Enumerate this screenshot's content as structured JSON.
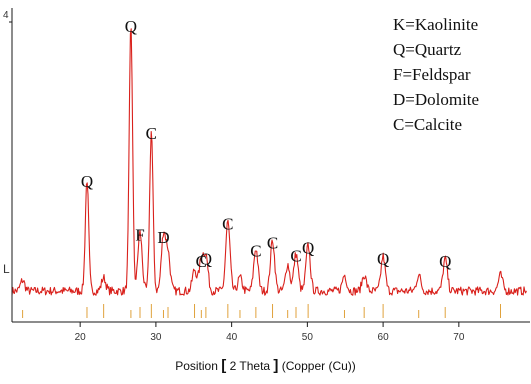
{
  "chart_data": {
    "type": "line",
    "xlabel": {
      "prefix": "Position",
      "bracket_open": "[",
      "text": "2 Theta",
      "bracket_close": "]",
      "suffix": "(Copper (Cu))"
    },
    "xlim": [
      11,
      79
    ],
    "x_ticks": [
      20,
      30,
      40,
      50,
      60,
      70
    ],
    "ylabel": "",
    "y_tick_label": "4",
    "baseline_tick_label": "L",
    "grid": false,
    "colors": {
      "pattern": "#d9211c",
      "reference_sticks": "#e0a23c",
      "axis": "#1a1a1a"
    },
    "legend": {
      "placement": "top-right",
      "entries": [
        "K=Kaolinite",
        "Q=Quartz",
        "F=Feldspar",
        "D=Dolomite",
        "C=Calcite"
      ]
    },
    "baseline_intensity": 6,
    "peaks": [
      {
        "label": "Q",
        "x": 20.9,
        "intensity": 42
      },
      {
        "label": "Q",
        "x": 26.7,
        "intensity": 100
      },
      {
        "label": "F",
        "x": 27.9,
        "intensity": 22
      },
      {
        "label": "C",
        "x": 29.4,
        "intensity": 60
      },
      {
        "label": "D",
        "x": 31.0,
        "intensity": 21
      },
      {
        "label": "C",
        "x": 39.5,
        "intensity": 26
      },
      {
        "label": "Q",
        "x": 36.6,
        "intensity": 13
      },
      {
        "label": "C",
        "x": 36.0,
        "intensity": 12
      },
      {
        "label": "C",
        "x": 43.2,
        "intensity": 16
      },
      {
        "label": "C",
        "x": 45.4,
        "intensity": 19
      },
      {
        "label": "C",
        "x": 48.5,
        "intensity": 14
      },
      {
        "label": "Q",
        "x": 50.1,
        "intensity": 17
      },
      {
        "label": "Q",
        "x": 60.0,
        "intensity": 13
      },
      {
        "label": "Q",
        "x": 68.2,
        "intensity": 12
      }
    ],
    "minor_peaks": [
      {
        "x": 12.4,
        "intensity": 4
      },
      {
        "x": 23.1,
        "intensity": 5
      },
      {
        "x": 31.6,
        "intensity": 14
      },
      {
        "x": 35.1,
        "intensity": 8
      },
      {
        "x": 41.1,
        "intensity": 5
      },
      {
        "x": 47.4,
        "intensity": 10
      },
      {
        "x": 54.9,
        "intensity": 6
      },
      {
        "x": 57.5,
        "intensity": 6
      },
      {
        "x": 64.7,
        "intensity": 6
      },
      {
        "x": 75.5,
        "intensity": 6
      }
    ]
  }
}
